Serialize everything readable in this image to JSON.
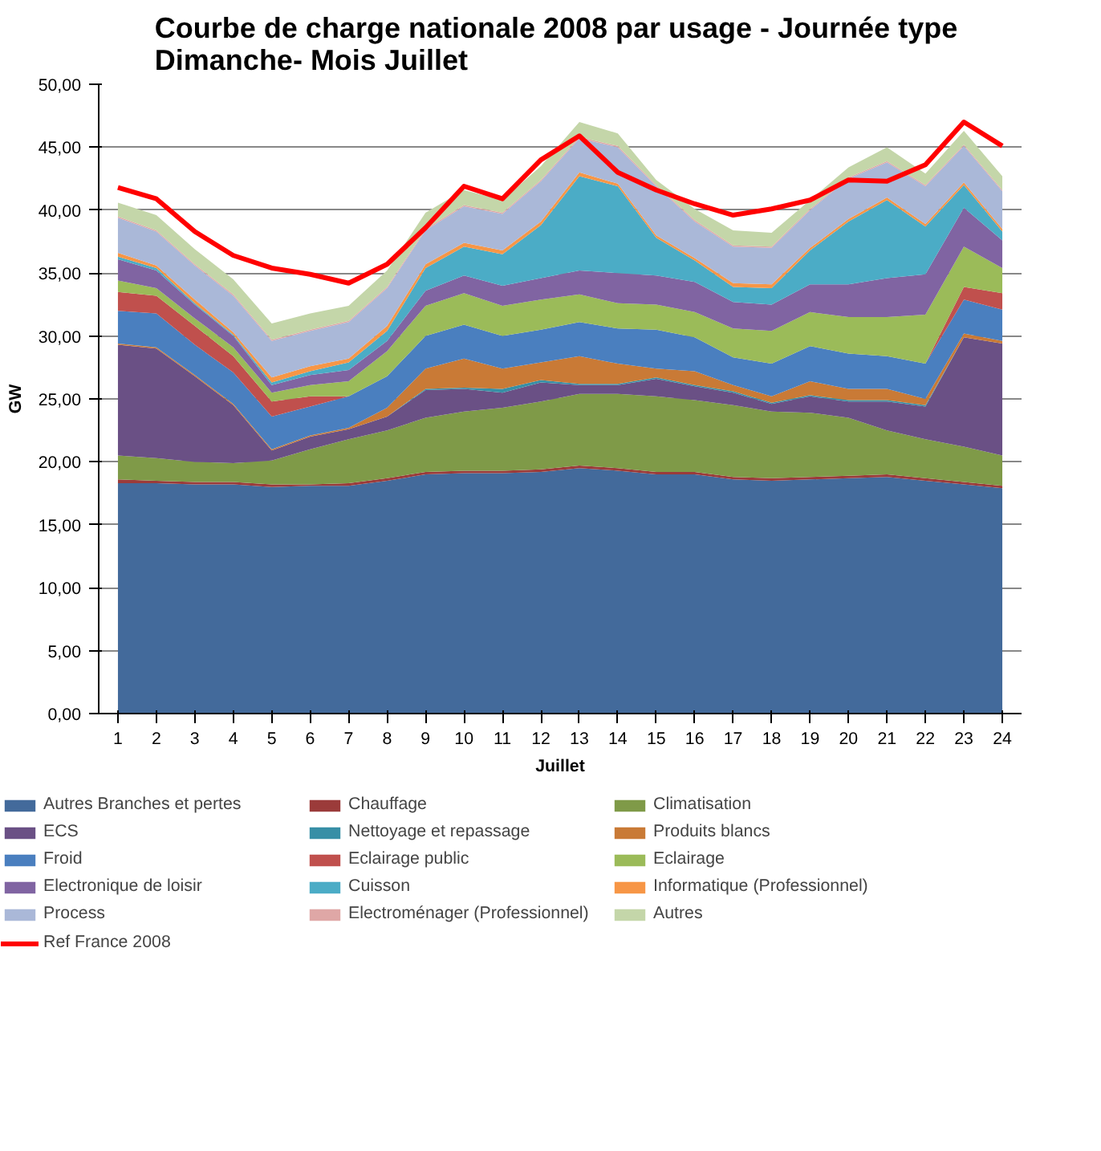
{
  "chart_data": {
    "type": "area",
    "stacked": true,
    "title": "Courbe de charge nationale 2008 par usage  - Journée type\nDimanche- Mois Juillet",
    "xlabel": "Juillet",
    "ylabel": "GW",
    "x": [
      1,
      2,
      3,
      4,
      5,
      6,
      7,
      8,
      9,
      10,
      11,
      12,
      13,
      14,
      15,
      16,
      17,
      18,
      19,
      20,
      21,
      22,
      23,
      24
    ],
    "xlim": [
      0.5,
      24.5
    ],
    "xticks": [
      1,
      2,
      3,
      4,
      5,
      6,
      7,
      8,
      9,
      10,
      11,
      12,
      13,
      14,
      15,
      16,
      17,
      18,
      19,
      20,
      21,
      22,
      23,
      24
    ],
    "ylim": [
      0,
      50
    ],
    "yticks": [
      {
        "value": 0,
        "label": "0,00"
      },
      {
        "value": 5,
        "label": "5,00"
      },
      {
        "value": 10,
        "label": "10,00"
      },
      {
        "value": 15,
        "label": "15,00"
      },
      {
        "value": 20,
        "label": "20,00"
      },
      {
        "value": 25,
        "label": "25,00"
      },
      {
        "value": 30,
        "label": "30,00"
      },
      {
        "value": 35,
        "label": "35,00"
      },
      {
        "value": 40,
        "label": "40,00"
      },
      {
        "value": 45,
        "label": "45,00"
      },
      {
        "value": 50,
        "label": "50,00"
      }
    ],
    "grid": "y",
    "legend": "bottom",
    "series": [
      {
        "name": "Autres Branches et pertes",
        "color": "#436a9b",
        "values": [
          18.3,
          18.3,
          18.2,
          18.2,
          18.0,
          18.1,
          18.1,
          18.5,
          19.0,
          19.1,
          19.1,
          19.2,
          19.5,
          19.3,
          19.0,
          19.0,
          18.6,
          18.5,
          18.6,
          18.7,
          18.8,
          18.5,
          18.2,
          17.9
        ]
      },
      {
        "name": "Chauffage",
        "color": "#9b3b3a",
        "values": [
          0.3,
          0.2,
          0.2,
          0.2,
          0.2,
          0.1,
          0.2,
          0.2,
          0.2,
          0.2,
          0.2,
          0.2,
          0.2,
          0.2,
          0.2,
          0.2,
          0.2,
          0.2,
          0.2,
          0.2,
          0.2,
          0.2,
          0.2,
          0.2
        ]
      },
      {
        "name": "Climatisation",
        "color": "#7f9a48",
        "values": [
          1.9,
          1.8,
          1.6,
          1.5,
          1.9,
          2.8,
          3.5,
          3.8,
          4.3,
          4.7,
          5.0,
          5.4,
          5.7,
          5.9,
          6.0,
          5.7,
          5.7,
          5.3,
          5.1,
          4.6,
          3.5,
          3.1,
          2.8,
          2.4
        ]
      },
      {
        "name": "ECS",
        "color": "#6a5085",
        "values": [
          8.8,
          8.7,
          6.8,
          4.6,
          0.8,
          1.0,
          0.8,
          1.1,
          2.2,
          1.8,
          1.2,
          1.5,
          0.7,
          0.7,
          1.4,
          1.1,
          1.0,
          0.6,
          1.3,
          1.3,
          2.3,
          2.6,
          8.7,
          8.9
        ]
      },
      {
        "name": "Nettoyage et repassage",
        "color": "#378fa6",
        "values": [
          0,
          0,
          0,
          0,
          0,
          0,
          0,
          0,
          0.1,
          0.1,
          0.3,
          0.2,
          0.1,
          0.1,
          0.1,
          0.1,
          0.1,
          0.1,
          0.1,
          0.1,
          0.1,
          0.1,
          0,
          0
        ]
      },
      {
        "name": "Produits blancs",
        "color": "#c97a36",
        "values": [
          0.1,
          0.1,
          0.1,
          0.1,
          0.1,
          0.1,
          0.1,
          0.7,
          1.6,
          2.3,
          1.6,
          1.4,
          2.2,
          1.6,
          0.7,
          1.1,
          0.5,
          0.5,
          1.1,
          0.9,
          0.9,
          0.5,
          0.3,
          0.2
        ]
      },
      {
        "name": "Froid",
        "color": "#4a7fbf",
        "values": [
          2.6,
          2.7,
          2.4,
          2.5,
          2.6,
          2.3,
          2.5,
          2.5,
          2.6,
          2.7,
          2.6,
          2.6,
          2.7,
          2.8,
          3.1,
          2.7,
          2.2,
          2.6,
          2.8,
          2.8,
          2.6,
          2.8,
          2.7,
          2.5
        ]
      },
      {
        "name": "Eclairage public",
        "color": "#c0504d",
        "values": [
          1.5,
          1.4,
          1.5,
          1.3,
          1.2,
          0.8,
          0,
          0,
          0,
          0,
          0,
          0,
          0,
          0,
          0,
          0,
          0,
          0,
          0,
          0,
          0,
          0,
          1.0,
          1.3
        ]
      },
      {
        "name": "Eclairage",
        "color": "#9bbb59",
        "values": [
          0.9,
          0.6,
          0.6,
          0.7,
          0.7,
          0.9,
          1.2,
          2.0,
          2.4,
          2.5,
          2.4,
          2.4,
          2.2,
          2.0,
          2.0,
          2.0,
          2.3,
          2.6,
          2.7,
          2.9,
          3.1,
          3.9,
          3.2,
          2.0
        ]
      },
      {
        "name": "Electronique de loisir",
        "color": "#8064a2",
        "values": [
          1.7,
          1.4,
          1.1,
          0.9,
          0.6,
          0.8,
          0.9,
          0.8,
          1.2,
          1.4,
          1.6,
          1.7,
          1.9,
          2.4,
          2.3,
          2.4,
          2.1,
          2.1,
          2.2,
          2.6,
          3.1,
          3.2,
          3.1,
          2.2
        ]
      },
      {
        "name": "Cuisson",
        "color": "#4bacc6",
        "values": [
          0.2,
          0.2,
          0.1,
          0.1,
          0.2,
          0.3,
          0.6,
          0.8,
          1.8,
          2.3,
          2.5,
          4.2,
          7.5,
          6.9,
          3.0,
          1.7,
          1.2,
          1.3,
          2.7,
          5.0,
          6.2,
          3.8,
          1.8,
          0.7
        ]
      },
      {
        "name": "Informatique (Professionnel)",
        "color": "#f79646",
        "values": [
          0.3,
          0.2,
          0.3,
          0.2,
          0.4,
          0.4,
          0.3,
          0.4,
          0.3,
          0.3,
          0.3,
          0.3,
          0.3,
          0.2,
          0.2,
          0.2,
          0.3,
          0.3,
          0.2,
          0.2,
          0.2,
          0.2,
          0.2,
          0.2
        ]
      },
      {
        "name": "Process",
        "color": "#aab8d8",
        "values": [
          2.8,
          2.7,
          2.7,
          2.9,
          2.9,
          2.8,
          2.9,
          3.0,
          2.7,
          2.9,
          2.9,
          3.2,
          2.7,
          2.9,
          3.9,
          2.9,
          2.9,
          2.9,
          3.0,
          3.2,
          2.8,
          3.0,
          2.9,
          3.0
        ]
      },
      {
        "name": "Electroménager (Professionnel)",
        "color": "#dfa7a6",
        "values": [
          0.1,
          0.1,
          0.1,
          0.1,
          0.1,
          0.1,
          0.1,
          0.1,
          0.1,
          0.1,
          0.1,
          0.1,
          0.1,
          0.1,
          0.1,
          0.1,
          0.1,
          0.1,
          0.1,
          0.1,
          0.1,
          0.1,
          0.1,
          0.1
        ]
      },
      {
        "name": "Autres",
        "color": "#c4d6a9",
        "values": [
          1.1,
          1.2,
          1.2,
          1.2,
          1.3,
          1.3,
          1.2,
          1.3,
          1.3,
          1.2,
          1.0,
          1.1,
          1.2,
          1.0,
          0.4,
          0.9,
          1.2,
          1.1,
          0.7,
          0.8,
          1.1,
          0.9,
          1.1,
          1.1
        ]
      },
      {
        "name": "Ref France 2008",
        "type": "line",
        "color": "#ff0000",
        "values": [
          41.8,
          40.9,
          38.3,
          36.4,
          35.4,
          34.9,
          34.2,
          35.7,
          38.6,
          41.9,
          40.9,
          44.0,
          45.9,
          43.0,
          41.6,
          40.5,
          39.6,
          40.1,
          40.8,
          42.4,
          42.3,
          43.6,
          47.0,
          45.1
        ]
      }
    ]
  }
}
